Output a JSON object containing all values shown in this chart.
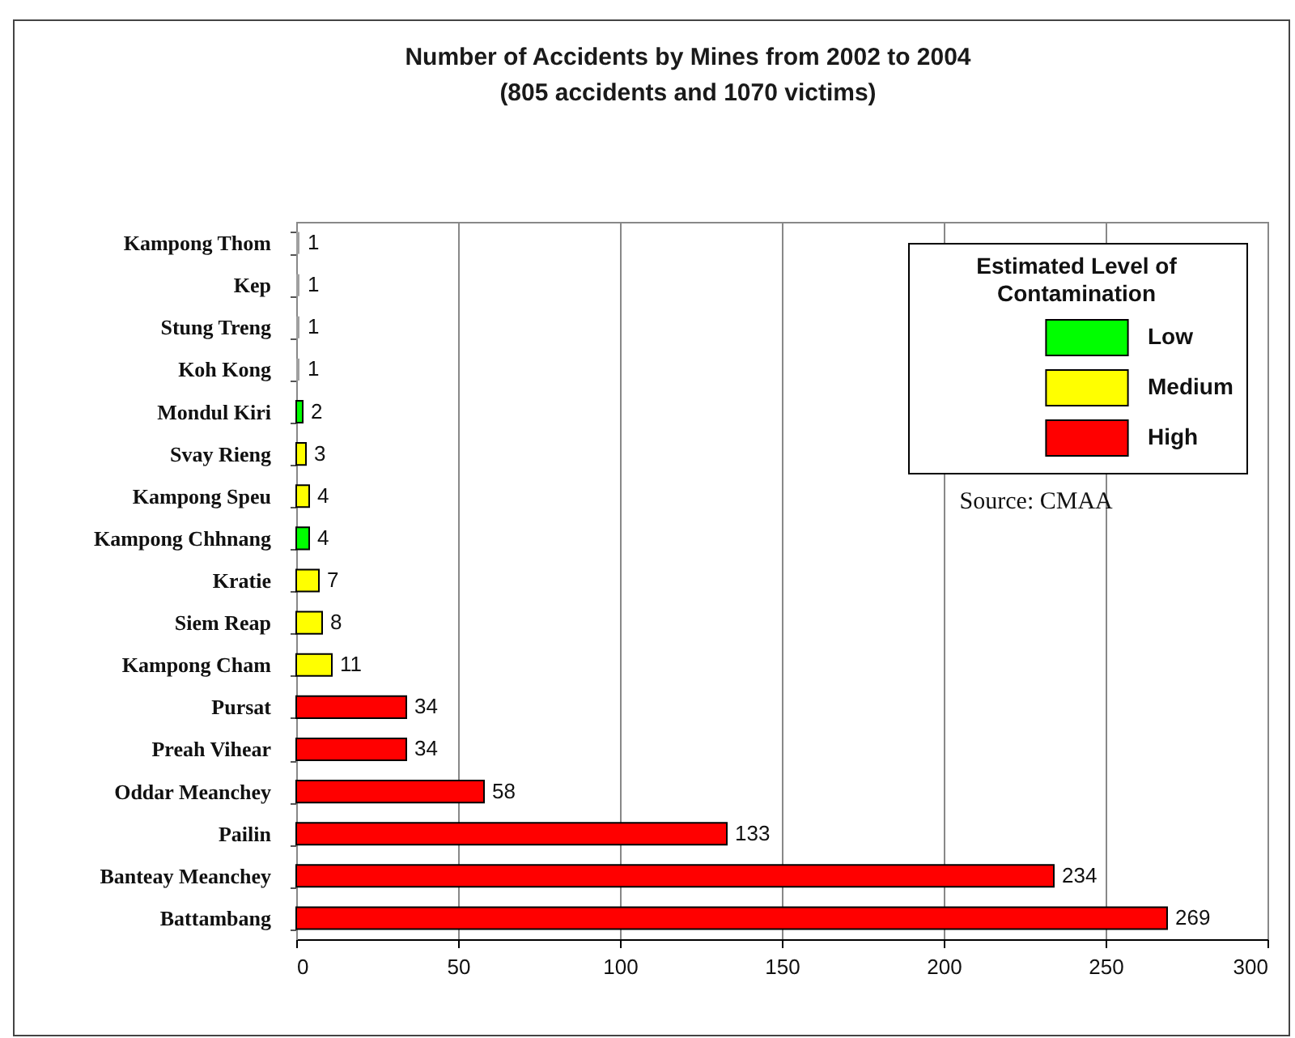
{
  "chart_data": {
    "type": "bar",
    "title": "Number of Accidents by Mines from 2002 to 2004",
    "subtitle": "(805 accidents and 1070 victims)",
    "legend_title": "Estimated Level of Contamination",
    "annotations": [
      "Source: CMAA"
    ],
    "categories": [
      "Kampong Thom",
      "Kep",
      "Stung Treng",
      "Koh Kong",
      "Mondul Kiri",
      "Svay Rieng",
      "Kampong Speu",
      "Kampong Chhnang",
      "Kratie",
      "Siem Reap",
      "Kampong Cham",
      "Pursat",
      "Preah Vihear",
      "Oddar Meanchey",
      "Pailin",
      "Banteay Meanchey",
      "Battambang"
    ],
    "series": [
      {
        "name": "Low",
        "color": "#00ff00",
        "values": [
          null,
          null,
          null,
          null,
          2,
          null,
          null,
          4,
          null,
          null,
          null,
          null,
          null,
          null,
          null,
          null,
          null
        ]
      },
      {
        "name": "Medium",
        "color": "#ffff00",
        "values": [
          null,
          null,
          null,
          null,
          null,
          3,
          4,
          null,
          7,
          8,
          11,
          null,
          null,
          null,
          null,
          null,
          null
        ]
      },
      {
        "name": "High",
        "color": "#ff0000",
        "values": [
          null,
          null,
          null,
          null,
          null,
          null,
          null,
          null,
          null,
          null,
          null,
          34,
          34,
          58,
          133,
          234,
          269
        ]
      },
      {
        "color": "#a0a0a0",
        "values": [
          1,
          1,
          1,
          1,
          null,
          null,
          null,
          null,
          null,
          null,
          null,
          null,
          null,
          null,
          null,
          null,
          null
        ]
      }
    ],
    "orientation": "horizontal",
    "stacked": true,
    "xlim": [
      0,
      300
    ],
    "xticks": [
      0,
      50,
      100,
      150,
      200,
      250,
      300
    ],
    "grid": "x",
    "legend": "top right",
    "data_labels": true
  }
}
